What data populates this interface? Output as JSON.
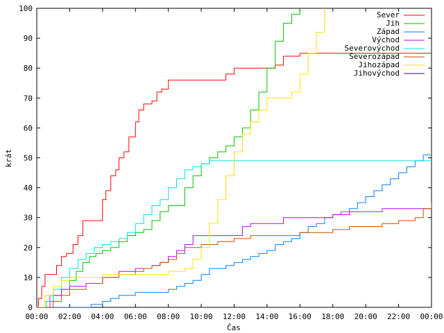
{
  "chart_data": {
    "type": "line",
    "title": "",
    "xlabel": "Čas",
    "ylabel": "krát",
    "xlim": [
      0,
      24
    ],
    "ylim": [
      0,
      100
    ],
    "grid": false,
    "legend_position": "top-right",
    "x_ticks": [
      "00:00",
      "02:00",
      "04:00",
      "06:00",
      "08:00",
      "10:00",
      "12:00",
      "14:00",
      "16:00",
      "18:00",
      "20:00",
      "22:00",
      "00:00"
    ],
    "y_ticks": [
      0,
      10,
      20,
      30,
      40,
      50,
      60,
      70,
      80,
      90,
      100
    ],
    "series": [
      {
        "name": "Sever",
        "color": "#ff0000",
        "step": true,
        "x": [
          0,
          0.1,
          0.3,
          0.5,
          0.8,
          1.2,
          1.5,
          1.8,
          2.2,
          2.5,
          2.8,
          3.1,
          3.3,
          4.0,
          4.2,
          4.5,
          4.8,
          5.0,
          5.3,
          5.6,
          6.0,
          6.2,
          6.5,
          6.7,
          7.0,
          7.3,
          7.6,
          8.0,
          8.3,
          8.8,
          9.0,
          9.5,
          10.5,
          11.5,
          12.0,
          12.5,
          13.0,
          14.0,
          14.5,
          15.0,
          15.5,
          16.0,
          17.0,
          18.0,
          20.0,
          22.0,
          24.0
        ],
        "y": [
          0,
          3,
          7,
          11,
          11,
          14,
          17,
          18,
          21,
          24,
          29,
          29,
          29,
          36,
          39,
          44,
          46,
          50,
          52,
          57,
          62,
          66,
          68,
          68,
          69,
          72,
          73,
          76,
          76,
          76,
          76,
          76,
          76,
          78,
          80,
          80,
          80,
          80,
          81,
          84,
          84,
          85,
          85,
          85,
          85,
          85,
          85
        ]
      },
      {
        "name": "Jih",
        "color": "#00c000",
        "step": true,
        "x": [
          0,
          0.5,
          1.0,
          1.5,
          2.0,
          2.4,
          2.8,
          3.2,
          3.6,
          4.0,
          4.5,
          5.0,
          5.5,
          6.0,
          6.5,
          7.0,
          7.5,
          8.0,
          8.5,
          9.0,
          9.5,
          10.0,
          10.5,
          11.0,
          11.5,
          12.0,
          12.5,
          13.0,
          13.5,
          14.0,
          14.5,
          15.0,
          15.5,
          16.0
        ],
        "y": [
          0,
          2,
          4,
          6,
          9,
          12,
          15,
          17,
          18,
          19,
          20,
          22,
          24,
          25,
          26,
          29,
          32,
          34,
          34,
          40,
          44,
          48,
          50,
          52,
          54,
          57,
          60,
          66,
          72,
          80,
          89,
          95,
          98,
          100
        ]
      },
      {
        "name": "Západ",
        "color": "#0080ff",
        "step": true,
        "x": [
          0,
          3.3,
          4.0,
          4.5,
          5.0,
          6.0,
          7.0,
          8.0,
          8.5,
          9.0,
          9.5,
          10.0,
          10.5,
          11.0,
          11.5,
          12.0,
          12.5,
          13.0,
          13.5,
          14.0,
          14.5,
          15.0,
          15.5,
          16.0,
          16.5,
          17.0,
          17.5,
          18.0,
          18.5,
          19.0,
          19.5,
          20.0,
          20.5,
          21.0,
          21.5,
          22.0,
          22.5,
          23.0,
          23.5,
          24.0
        ],
        "y": [
          0,
          1,
          2,
          3,
          4,
          5,
          5,
          6,
          7,
          8,
          9,
          11,
          13,
          13,
          14,
          15,
          16,
          17,
          18,
          19,
          21,
          22,
          23,
          25,
          27,
          28,
          30,
          31,
          32,
          33,
          35,
          37,
          39,
          41,
          43,
          45,
          47,
          49,
          51,
          51
        ]
      },
      {
        "name": "Východ",
        "color": "#c000ff",
        "step": true,
        "x": [
          0,
          0.8,
          1.5,
          2.0,
          3.0,
          4.0,
          5.0,
          6.0,
          7.0,
          7.5,
          8.0,
          8.5,
          9.0,
          9.5,
          10.0,
          11.0,
          12.0,
          12.5,
          13.0,
          14.0,
          15.0,
          16.0,
          17.0,
          18.0,
          19.0,
          20.0,
          21.0,
          22.0,
          23.0,
          24.0
        ],
        "y": [
          0,
          4,
          6,
          7,
          8,
          10,
          12,
          13,
          14,
          15,
          17,
          19,
          21,
          24,
          24,
          24,
          24,
          27,
          28,
          28,
          30,
          30,
          30,
          31,
          32,
          32,
          33,
          33,
          33,
          33
        ]
      },
      {
        "name": "Severovýchod",
        "color": "#00e0e0",
        "step": true,
        "x": [
          0,
          0.6,
          1.0,
          1.5,
          2.0,
          2.5,
          3.0,
          3.5,
          4.0,
          4.5,
          5.0,
          5.5,
          6.0,
          6.5,
          7.0,
          7.5,
          8.0,
          8.5,
          9.0,
          9.5,
          10.0,
          10.5,
          11.0,
          12.0,
          14.0,
          16.0,
          18.0,
          20.0,
          22.0,
          24.0
        ],
        "y": [
          0,
          2,
          6,
          10,
          13,
          16,
          18,
          20,
          21,
          22,
          23,
          25,
          28,
          31,
          34,
          36,
          40,
          43,
          46,
          47,
          48,
          49,
          49,
          49,
          49,
          49,
          49,
          49,
          49,
          49
        ]
      },
      {
        "name": "Severozápad",
        "color": "#c05000",
        "step": true,
        "x": [
          0,
          1.0,
          1.5,
          2.0,
          3.0,
          4.0,
          5.0,
          6.0,
          6.5,
          7.0,
          7.5,
          8.0,
          8.5,
          9.0,
          10.0,
          11.0,
          12.0,
          13.0,
          14.0,
          15.0,
          16.0,
          17.0,
          18.0,
          19.0,
          20.0,
          21.0,
          22.0,
          23.0,
          23.5,
          24.0
        ],
        "y": [
          0,
          2,
          4,
          6,
          8,
          10,
          11,
          12,
          13,
          14,
          15,
          16,
          18,
          20,
          21,
          22,
          23,
          24,
          24,
          24,
          25,
          25,
          26,
          27,
          27,
          28,
          29,
          30,
          33,
          35
        ]
      },
      {
        "name": "Jihozápad",
        "color": "#ffe000",
        "step": true,
        "x": [
          0,
          0.5,
          1.0,
          1.5,
          2.0,
          3.0,
          4.0,
          5.0,
          6.0,
          7.0,
          8.0,
          9.0,
          9.5,
          10.0,
          10.5,
          11.0,
          11.5,
          12.0,
          12.5,
          13.0,
          13.5,
          14.0,
          14.5,
          15.0,
          15.5,
          16.0,
          16.5,
          17.0,
          17.5
        ],
        "y": [
          0,
          4,
          7,
          9,
          10,
          10,
          11,
          11,
          11,
          11,
          12,
          13,
          16,
          20,
          28,
          36,
          44,
          52,
          58,
          62,
          66,
          70,
          70,
          70,
          72,
          78,
          85,
          92,
          100
        ]
      },
      {
        "name": "Jihovýchod",
        "color": "#4000a0",
        "step": true,
        "x": [],
        "y": []
      }
    ]
  }
}
